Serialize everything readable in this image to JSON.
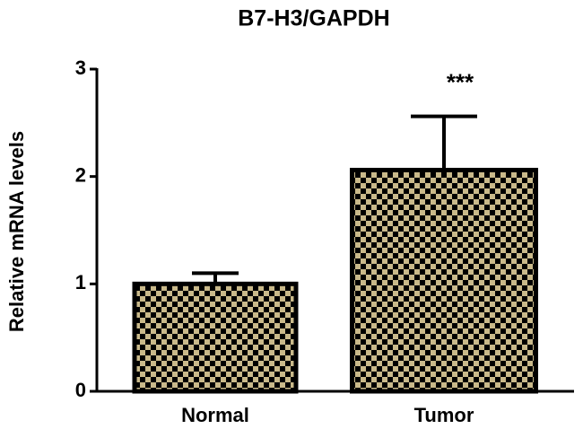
{
  "chart_data": {
    "type": "bar",
    "title": "B7-H3/GAPDH",
    "y_label": "Relative mRNA levels",
    "categories": [
      "Normal",
      "Tumor"
    ],
    "values": [
      1.0,
      2.06
    ],
    "errors": [
      0.1,
      0.5
    ],
    "color": "#c9b98a",
    "annotation": "***",
    "ylim": [
      0,
      3
    ],
    "yticks": [
      0,
      1,
      2,
      3
    ]
  }
}
